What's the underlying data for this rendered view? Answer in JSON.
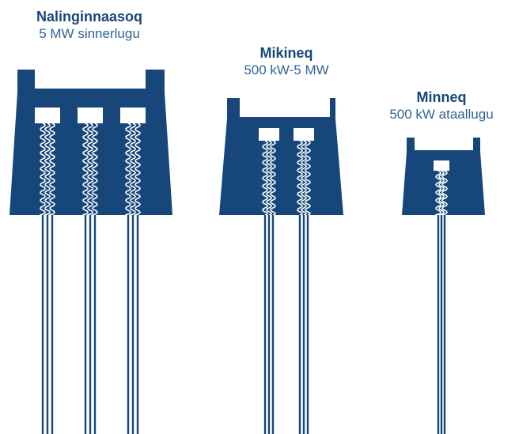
{
  "colors": {
    "building": "#17477a",
    "accent": "#ffffff",
    "title_text": "#17477a",
    "subtitle_text": "#2f6496"
  },
  "stations": [
    {
      "name": "Nalinginnaasoq",
      "capacity": "5 MW sinnerlugu",
      "turbines": 3
    },
    {
      "name": "Mikineq",
      "capacity": "500 kW-5 MW",
      "turbines": 2
    },
    {
      "name": "Minneq",
      "capacity": "500 kW ataallugu",
      "turbines": 1
    }
  ]
}
